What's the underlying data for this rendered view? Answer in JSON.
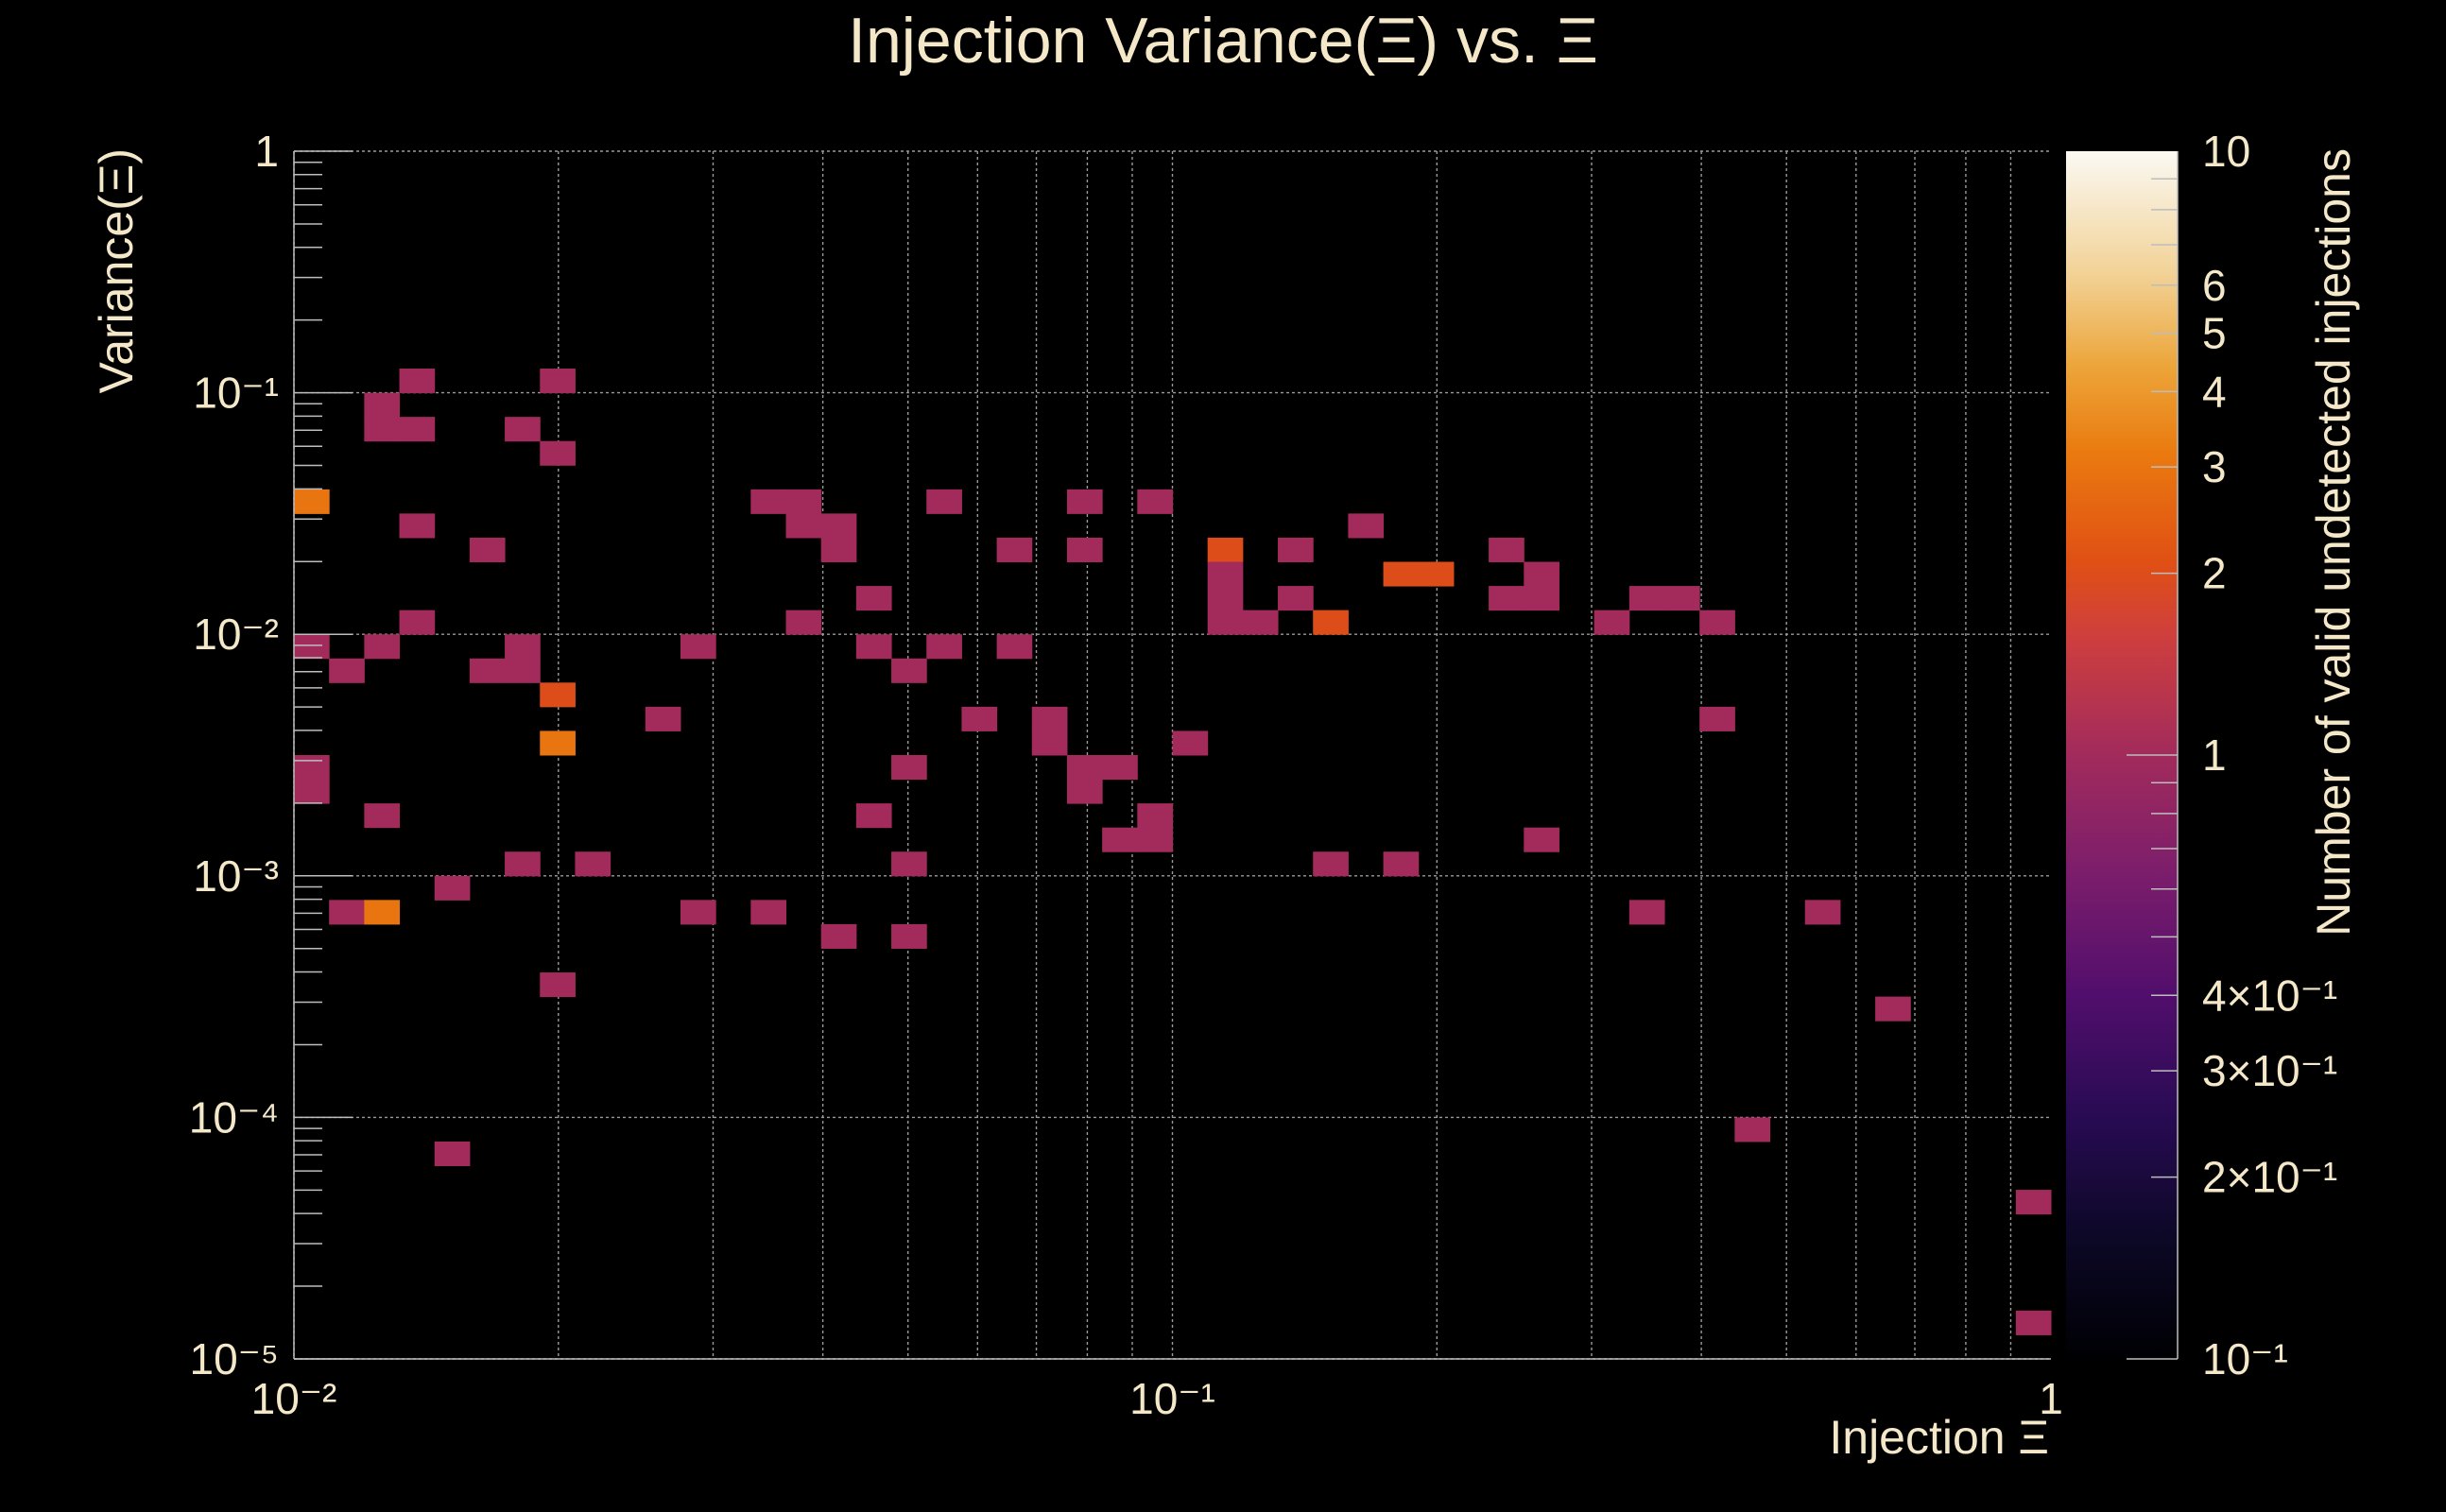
{
  "chart_data": {
    "type": "heatmap",
    "title": "Injection Variance(Ξ) vs. Ξ",
    "xlabel": "Injection Ξ",
    "ylabel": "Variance(Ξ)",
    "zlabel": "Number of valid undetected injections",
    "xscale": "log",
    "yscale": "log",
    "zscale": "log",
    "xlim": [
      0.01,
      1
    ],
    "ylim": [
      1e-05,
      1
    ],
    "zlim": [
      0.1,
      10
    ],
    "grid": true,
    "x_ticks": [
      {
        "value": 0.01,
        "label": "10⁻²"
      },
      {
        "value": 0.1,
        "label": "10⁻¹"
      },
      {
        "value": 1,
        "label": "1"
      }
    ],
    "y_ticks": [
      {
        "value": 1,
        "label": "1"
      },
      {
        "value": 0.1,
        "label": "10⁻¹"
      },
      {
        "value": 0.01,
        "label": "10⁻²"
      },
      {
        "value": 0.001,
        "label": "10⁻³"
      },
      {
        "value": 0.0001,
        "label": "10⁻⁴"
      },
      {
        "value": 1e-05,
        "label": "10⁻⁵"
      }
    ],
    "z_ticks": [
      {
        "value": 10,
        "label": "10"
      },
      {
        "value": 6,
        "label": "6"
      },
      {
        "value": 5,
        "label": "5"
      },
      {
        "value": 4,
        "label": "4"
      },
      {
        "value": 3,
        "label": "3"
      },
      {
        "value": 2,
        "label": "2"
      },
      {
        "value": 1,
        "label": "1"
      },
      {
        "value": 0.4,
        "label": "4×10⁻¹"
      },
      {
        "value": 0.3,
        "label": "3×10⁻¹"
      },
      {
        "value": 0.2,
        "label": "2×10⁻¹"
      },
      {
        "value": 0.1,
        "label": "10⁻¹"
      }
    ],
    "bins_x": 50,
    "bins_y": 50,
    "cells": [
      {
        "ix": 0,
        "iy": 35,
        "count": 3
      },
      {
        "ix": 0,
        "iy": 29,
        "count": 1
      },
      {
        "ix": 0,
        "iy": 24,
        "count": 1
      },
      {
        "ix": 0,
        "iy": 23,
        "count": 1
      },
      {
        "ix": 1,
        "iy": 28,
        "count": 1
      },
      {
        "ix": 1,
        "iy": 18,
        "count": 1
      },
      {
        "ix": 2,
        "iy": 39,
        "count": 1
      },
      {
        "ix": 2,
        "iy": 38,
        "count": 1
      },
      {
        "ix": 2,
        "iy": 29,
        "count": 1
      },
      {
        "ix": 2,
        "iy": 22,
        "count": 1
      },
      {
        "ix": 2,
        "iy": 18,
        "count": 3
      },
      {
        "ix": 3,
        "iy": 40,
        "count": 1
      },
      {
        "ix": 3,
        "iy": 38,
        "count": 1
      },
      {
        "ix": 3,
        "iy": 34,
        "count": 1
      },
      {
        "ix": 3,
        "iy": 30,
        "count": 1
      },
      {
        "ix": 4,
        "iy": 19,
        "count": 1
      },
      {
        "ix": 4,
        "iy": 8,
        "count": 1
      },
      {
        "ix": 5,
        "iy": 33,
        "count": 1
      },
      {
        "ix": 5,
        "iy": 28,
        "count": 1
      },
      {
        "ix": 6,
        "iy": 38,
        "count": 1
      },
      {
        "ix": 6,
        "iy": 29,
        "count": 1
      },
      {
        "ix": 6,
        "iy": 28,
        "count": 1
      },
      {
        "ix": 6,
        "iy": 20,
        "count": 1
      },
      {
        "ix": 7,
        "iy": 40,
        "count": 1
      },
      {
        "ix": 7,
        "iy": 37,
        "count": 1
      },
      {
        "ix": 7,
        "iy": 27,
        "count": 2
      },
      {
        "ix": 7,
        "iy": 25,
        "count": 3
      },
      {
        "ix": 7,
        "iy": 15,
        "count": 1
      },
      {
        "ix": 8,
        "iy": 20,
        "count": 1
      },
      {
        "ix": 10,
        "iy": 26,
        "count": 1
      },
      {
        "ix": 11,
        "iy": 29,
        "count": 1
      },
      {
        "ix": 11,
        "iy": 18,
        "count": 1
      },
      {
        "ix": 13,
        "iy": 35,
        "count": 1
      },
      {
        "ix": 13,
        "iy": 18,
        "count": 1
      },
      {
        "ix": 14,
        "iy": 35,
        "count": 1
      },
      {
        "ix": 14,
        "iy": 34,
        "count": 1
      },
      {
        "ix": 14,
        "iy": 30,
        "count": 1
      },
      {
        "ix": 15,
        "iy": 34,
        "count": 1
      },
      {
        "ix": 15,
        "iy": 33,
        "count": 1
      },
      {
        "ix": 15,
        "iy": 17,
        "count": 1
      },
      {
        "ix": 16,
        "iy": 31,
        "count": 1
      },
      {
        "ix": 16,
        "iy": 29,
        "count": 1
      },
      {
        "ix": 16,
        "iy": 22,
        "count": 1
      },
      {
        "ix": 17,
        "iy": 28,
        "count": 1
      },
      {
        "ix": 17,
        "iy": 24,
        "count": 1
      },
      {
        "ix": 17,
        "iy": 20,
        "count": 1
      },
      {
        "ix": 17,
        "iy": 17,
        "count": 1
      },
      {
        "ix": 18,
        "iy": 35,
        "count": 1
      },
      {
        "ix": 18,
        "iy": 29,
        "count": 1
      },
      {
        "ix": 19,
        "iy": 26,
        "count": 1
      },
      {
        "ix": 20,
        "iy": 33,
        "count": 1
      },
      {
        "ix": 20,
        "iy": 29,
        "count": 1
      },
      {
        "ix": 21,
        "iy": 26,
        "count": 1
      },
      {
        "ix": 21,
        "iy": 25,
        "count": 1
      },
      {
        "ix": 22,
        "iy": 35,
        "count": 1
      },
      {
        "ix": 22,
        "iy": 33,
        "count": 1
      },
      {
        "ix": 22,
        "iy": 24,
        "count": 1
      },
      {
        "ix": 22,
        "iy": 23,
        "count": 1
      },
      {
        "ix": 23,
        "iy": 24,
        "count": 1
      },
      {
        "ix": 23,
        "iy": 21,
        "count": 1
      },
      {
        "ix": 24,
        "iy": 35,
        "count": 1
      },
      {
        "ix": 24,
        "iy": 22,
        "count": 1
      },
      {
        "ix": 24,
        "iy": 21,
        "count": 1
      },
      {
        "ix": 25,
        "iy": 25,
        "count": 1
      },
      {
        "ix": 26,
        "iy": 33,
        "count": 2
      },
      {
        "ix": 26,
        "iy": 32,
        "count": 1
      },
      {
        "ix": 26,
        "iy": 31,
        "count": 1
      },
      {
        "ix": 26,
        "iy": 30,
        "count": 1
      },
      {
        "ix": 27,
        "iy": 30,
        "count": 1
      },
      {
        "ix": 28,
        "iy": 33,
        "count": 1
      },
      {
        "ix": 28,
        "iy": 31,
        "count": 1
      },
      {
        "ix": 29,
        "iy": 30,
        "count": 2
      },
      {
        "ix": 29,
        "iy": 20,
        "count": 1
      },
      {
        "ix": 30,
        "iy": 34,
        "count": 1
      },
      {
        "ix": 31,
        "iy": 32,
        "count": 2
      },
      {
        "ix": 31,
        "iy": 20,
        "count": 1
      },
      {
        "ix": 32,
        "iy": 32,
        "count": 2
      },
      {
        "ix": 34,
        "iy": 33,
        "count": 1
      },
      {
        "ix": 34,
        "iy": 31,
        "count": 1
      },
      {
        "ix": 35,
        "iy": 32,
        "count": 1
      },
      {
        "ix": 35,
        "iy": 31,
        "count": 1
      },
      {
        "ix": 35,
        "iy": 21,
        "count": 1
      },
      {
        "ix": 37,
        "iy": 30,
        "count": 1
      },
      {
        "ix": 38,
        "iy": 31,
        "count": 1
      },
      {
        "ix": 38,
        "iy": 18,
        "count": 1
      },
      {
        "ix": 39,
        "iy": 31,
        "count": 1
      },
      {
        "ix": 40,
        "iy": 30,
        "count": 1
      },
      {
        "ix": 40,
        "iy": 26,
        "count": 1
      },
      {
        "ix": 41,
        "iy": 9,
        "count": 1
      },
      {
        "ix": 43,
        "iy": 18,
        "count": 1
      },
      {
        "ix": 45,
        "iy": 14,
        "count": 1
      },
      {
        "ix": 49,
        "iy": 6,
        "count": 1
      },
      {
        "ix": 49,
        "iy": 1,
        "count": 1
      }
    ]
  }
}
